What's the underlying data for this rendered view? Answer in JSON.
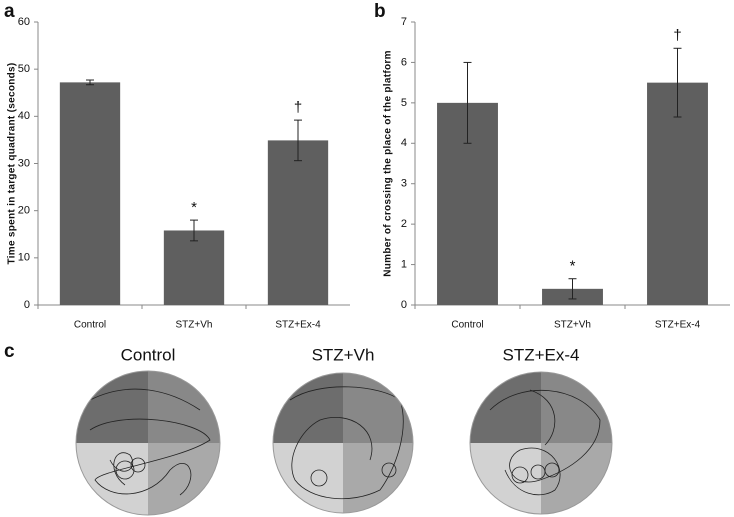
{
  "chart_data": [
    {
      "type": "bar",
      "panel_label": "a",
      "y_label": "Time spent in target quadrant (seconds)",
      "categories": [
        "Control",
        "STZ+Vh",
        "STZ+Ex-4"
      ],
      "values": [
        47.2,
        15.8,
        34.9
      ],
      "errors": [
        0.5,
        2.2,
        4.3
      ],
      "annotations": [
        null,
        "*",
        "†"
      ],
      "color": "#5f5f5f",
      "ylim": [
        0,
        60
      ],
      "yticks": [
        0,
        10,
        20,
        30,
        40,
        50,
        60
      ]
    },
    {
      "type": "bar",
      "panel_label": "b",
      "y_label": "Number of crossing the place of the platform",
      "categories": [
        "Control",
        "STZ+Vh",
        "STZ+Ex-4"
      ],
      "values": [
        5.0,
        0.4,
        5.5
      ],
      "errors": [
        1.0,
        0.25,
        0.85
      ],
      "annotations": [
        null,
        "*",
        "†"
      ],
      "color": "#5f5f5f",
      "ylim": [
        0,
        7
      ],
      "yticks": [
        0,
        1,
        2,
        3,
        4,
        5,
        6,
        7
      ]
    }
  ],
  "panel_c": {
    "label": "c",
    "titles": [
      "Control",
      "STZ+Vh",
      "STZ+Ex-4"
    ]
  }
}
